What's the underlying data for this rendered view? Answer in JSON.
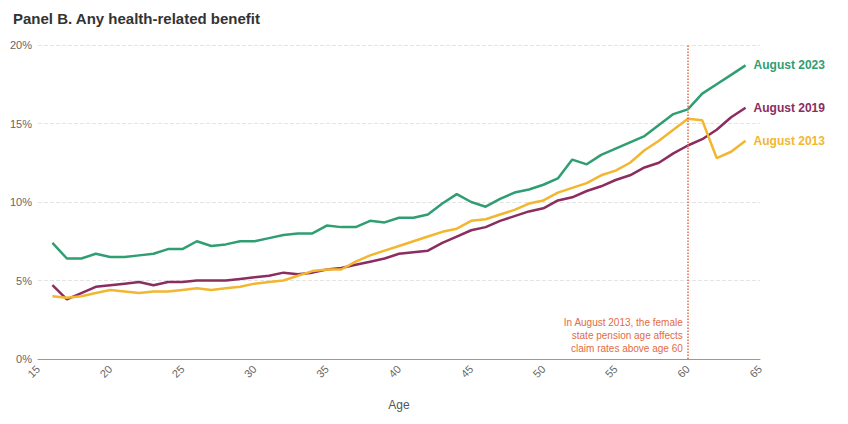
{
  "chart_data": {
    "type": "line",
    "title": "Panel B. Any health-related benefit",
    "x_label": "Age",
    "x": [
      16,
      17,
      18,
      19,
      20,
      21,
      22,
      23,
      24,
      25,
      26,
      27,
      28,
      29,
      30,
      31,
      32,
      33,
      34,
      35,
      36,
      37,
      38,
      39,
      40,
      41,
      42,
      43,
      44,
      45,
      46,
      47,
      48,
      49,
      50,
      51,
      52,
      53,
      54,
      55,
      56,
      57,
      58,
      59,
      60,
      61,
      62,
      63,
      64
    ],
    "series": [
      {
        "name": "August 2023",
        "color": "#2f9e72",
        "values": [
          7.4,
          6.4,
          6.4,
          6.7,
          6.5,
          6.5,
          6.6,
          6.7,
          7.0,
          7.0,
          7.5,
          7.2,
          7.3,
          7.5,
          7.5,
          7.7,
          7.9,
          8.0,
          8.0,
          8.5,
          8.4,
          8.4,
          8.8,
          8.7,
          9.0,
          9.0,
          9.2,
          9.9,
          10.5,
          10.0,
          9.7,
          10.2,
          10.6,
          10.8,
          11.1,
          11.5,
          12.7,
          12.4,
          13.0,
          13.4,
          13.8,
          14.2,
          14.9,
          15.6,
          15.9,
          16.9,
          17.5,
          18.1,
          18.7
        ]
      },
      {
        "name": "August 2019",
        "color": "#8b2d5f",
        "values": [
          4.7,
          3.8,
          4.2,
          4.6,
          4.7,
          4.8,
          4.9,
          4.7,
          4.9,
          4.9,
          5.0,
          5.0,
          5.0,
          5.1,
          5.2,
          5.3,
          5.5,
          5.4,
          5.5,
          5.7,
          5.8,
          6.0,
          6.2,
          6.4,
          6.7,
          6.8,
          6.9,
          7.4,
          7.8,
          8.2,
          8.4,
          8.8,
          9.1,
          9.4,
          9.6,
          10.1,
          10.3,
          10.7,
          11.0,
          11.4,
          11.7,
          12.2,
          12.5,
          13.1,
          13.6,
          14.0,
          14.6,
          15.4,
          16.0
        ]
      },
      {
        "name": "August 2013",
        "color": "#f2b631",
        "values": [
          4.0,
          3.9,
          4.0,
          4.2,
          4.4,
          4.3,
          4.2,
          4.3,
          4.3,
          4.4,
          4.5,
          4.4,
          4.5,
          4.6,
          4.8,
          4.9,
          5.0,
          5.3,
          5.6,
          5.7,
          5.7,
          6.2,
          6.6,
          6.9,
          7.2,
          7.5,
          7.8,
          8.1,
          8.3,
          8.8,
          8.9,
          9.2,
          9.5,
          9.9,
          10.1,
          10.6,
          10.9,
          11.2,
          11.7,
          12.0,
          12.5,
          13.3,
          13.9,
          14.6,
          15.3,
          15.2,
          12.8,
          13.2,
          13.9
        ]
      }
    ],
    "xlim": [
      15,
      65
    ],
    "xticks": [
      15,
      20,
      25,
      30,
      35,
      40,
      45,
      50,
      55,
      60,
      65
    ],
    "ylim": [
      0,
      20
    ],
    "yticks": [
      {
        "value": 0,
        "label": "0%"
      },
      {
        "value": 5,
        "label": "5%"
      },
      {
        "value": 10,
        "label": "10%"
      },
      {
        "value": 15,
        "label": "15%"
      },
      {
        "value": 20,
        "label": "20%"
      }
    ],
    "grid": true,
    "annotations": [
      {
        "x": 60,
        "color": "#e36b45",
        "line_style": "dotted",
        "text": "In August 2013, the female\nstate pension age affects\nclaim rates above age 60"
      }
    ]
  }
}
